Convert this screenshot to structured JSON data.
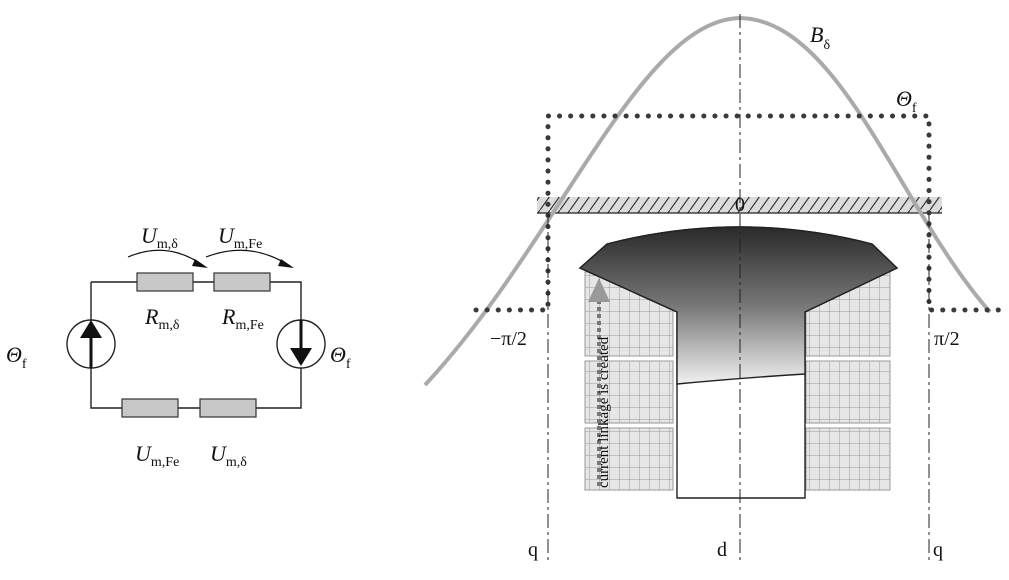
{
  "circuit": {
    "theta_left": {
      "sym": "Θ",
      "sub": "f"
    },
    "theta_right": {
      "sym": "Θ",
      "sub": "f"
    },
    "u_delta_top": {
      "sym": "U",
      "sub": "m,δ"
    },
    "u_fe_top": {
      "sym": "U",
      "sub": "m,Fe"
    },
    "r_delta": {
      "sym": "R",
      "sub": "m,δ"
    },
    "r_fe": {
      "sym": "R",
      "sub": "m,Fe"
    },
    "u_fe_bottom": {
      "sym": "U",
      "sub": "m,Fe"
    },
    "u_delta_bottom": {
      "sym": "U",
      "sub": "m,δ"
    }
  },
  "pole": {
    "b_delta": {
      "sym": "B",
      "sub": "δ"
    },
    "theta_f": {
      "sym": "Θ",
      "sub": "f"
    },
    "zero_label": "0",
    "minus_pi_2": "−π/2",
    "pi_2": "π/2",
    "q_left": "q",
    "d_label": "d",
    "q_right": "q",
    "coil_text": "current linkage is created"
  },
  "colors": {
    "curve": "#aaaaaa",
    "dots": "#3a3a3a",
    "coil_fill": "#e6e6e6",
    "coil_grid": "#9a9a9a",
    "resistor": "#c8c8c8"
  }
}
